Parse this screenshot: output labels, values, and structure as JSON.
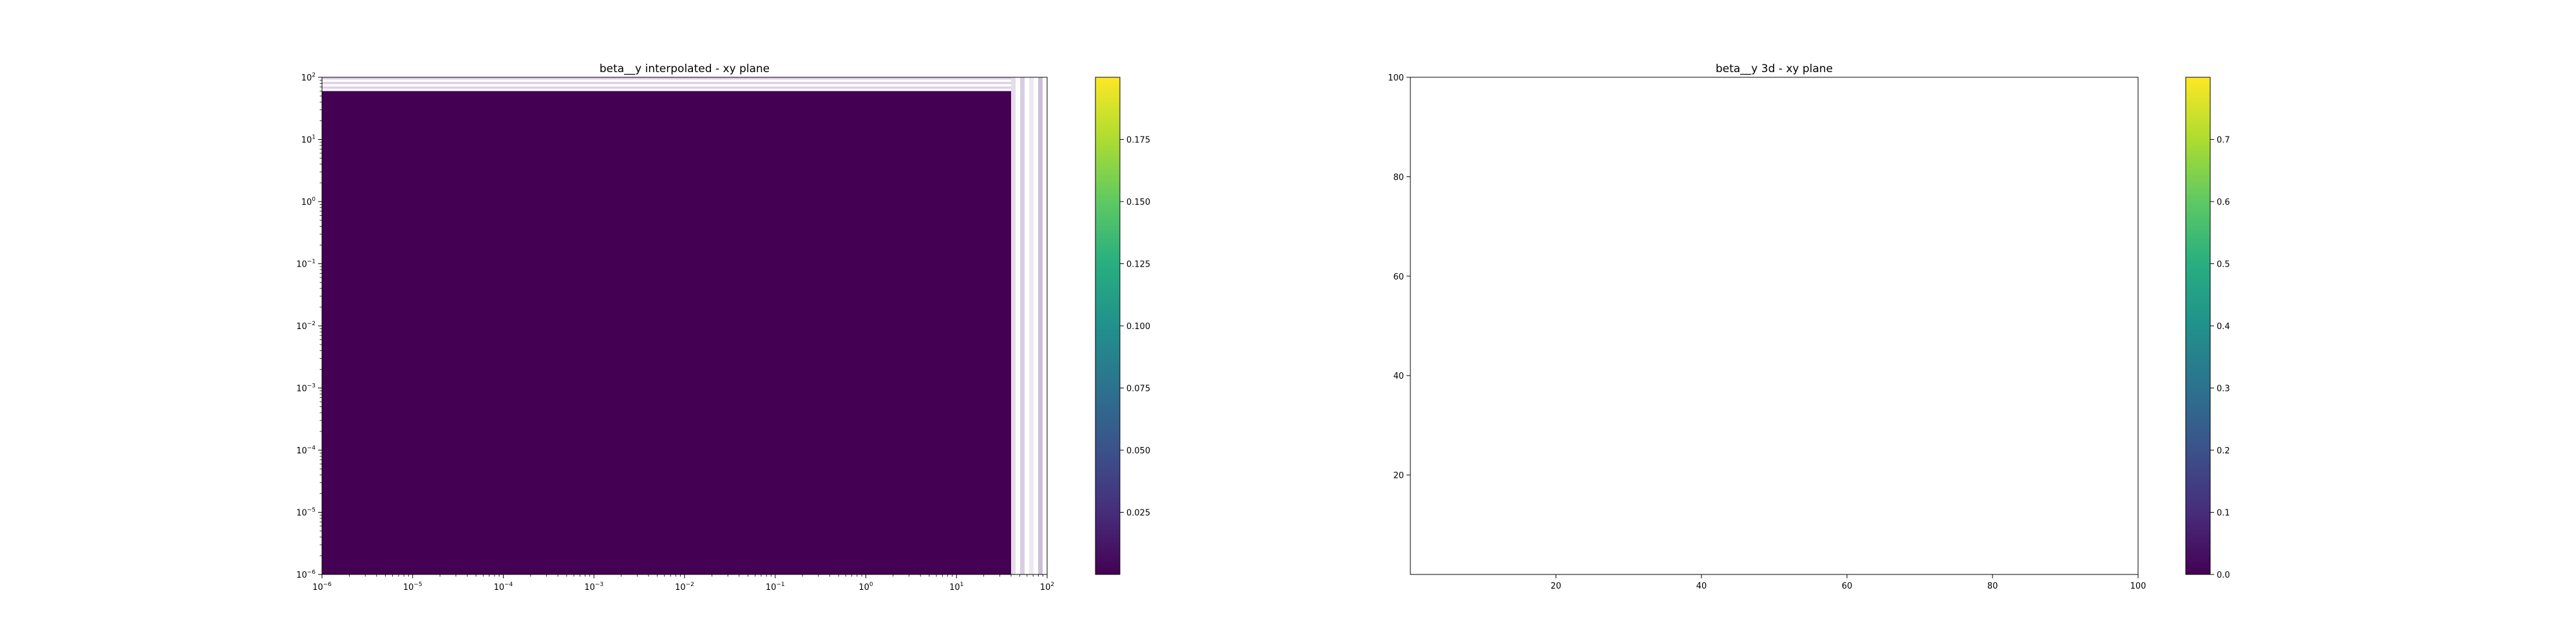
{
  "chart_data": [
    {
      "type": "heatmap",
      "title": "beta__y interpolated - xy plane",
      "xscale": "log",
      "yscale": "log",
      "xlim": [
        1e-06,
        100
      ],
      "ylim": [
        1e-06,
        100
      ],
      "xticks": [
        {
          "value": 1e-06,
          "base": "10",
          "exp": "−6"
        },
        {
          "value": 1e-05,
          "base": "10",
          "exp": "−5"
        },
        {
          "value": 0.0001,
          "base": "10",
          "exp": "−4"
        },
        {
          "value": 0.001,
          "base": "10",
          "exp": "−3"
        },
        {
          "value": 0.01,
          "base": "10",
          "exp": "−2"
        },
        {
          "value": 0.1,
          "base": "10",
          "exp": "−1"
        },
        {
          "value": 1,
          "base": "10",
          "exp": "0"
        },
        {
          "value": 10,
          "base": "10",
          "exp": "1"
        },
        {
          "value": 100,
          "base": "10",
          "exp": "2"
        }
      ],
      "yticks": [
        {
          "value": 1e-06,
          "base": "10",
          "exp": "−6"
        },
        {
          "value": 1e-05,
          "base": "10",
          "exp": "−5"
        },
        {
          "value": 0.0001,
          "base": "10",
          "exp": "−4"
        },
        {
          "value": 0.001,
          "base": "10",
          "exp": "−3"
        },
        {
          "value": 0.01,
          "base": "10",
          "exp": "−2"
        },
        {
          "value": 0.1,
          "base": "10",
          "exp": "−1"
        },
        {
          "value": 1,
          "base": "10",
          "exp": "0"
        },
        {
          "value": 10,
          "base": "10",
          "exp": "1"
        },
        {
          "value": 100,
          "base": "10",
          "exp": "2"
        }
      ],
      "fill_region": {
        "xmin": 1e-06,
        "xmax": 40,
        "ymin": 1e-06,
        "ymax": 60,
        "value": 0
      },
      "colormap": "viridis",
      "colorbar": {
        "range": [
          0,
          0.2
        ],
        "ticks": [
          "0.025",
          "0.050",
          "0.075",
          "0.100",
          "0.125",
          "0.150",
          "0.175"
        ],
        "tick_values": [
          0.025,
          0.05,
          0.075,
          0.1,
          0.125,
          0.15,
          0.175
        ]
      }
    },
    {
      "type": "heatmap",
      "title": "beta__y 3d - xy plane",
      "xscale": "linear",
      "yscale": "linear",
      "xlim": [
        0,
        100
      ],
      "ylim": [
        0,
        100
      ],
      "xticks": [
        "20",
        "40",
        "60",
        "80",
        "100"
      ],
      "xtick_values": [
        20,
        40,
        60,
        80,
        100
      ],
      "yticks": [
        "20",
        "40",
        "60",
        "80",
        "100"
      ],
      "ytick_values": [
        20,
        40,
        60,
        80,
        100
      ],
      "colormap": "viridis",
      "colorbar": {
        "range": [
          0,
          0.8
        ],
        "ticks": [
          "0.0",
          "0.1",
          "0.2",
          "0.3",
          "0.4",
          "0.5",
          "0.6",
          "0.7"
        ],
        "tick_values": [
          0,
          0.1,
          0.2,
          0.3,
          0.4,
          0.5,
          0.6,
          0.7
        ]
      }
    }
  ]
}
